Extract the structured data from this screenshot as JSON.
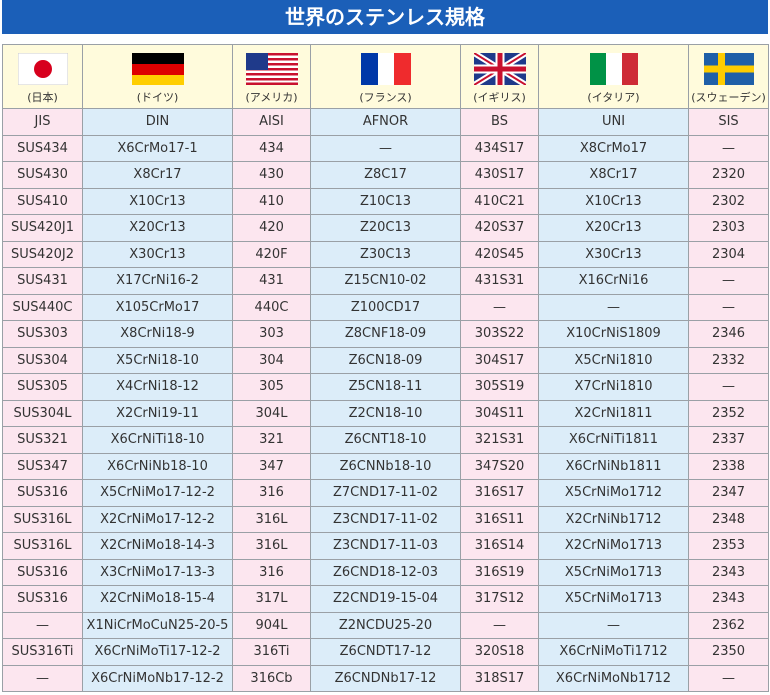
{
  "header": {
    "title": "世界のステンレス規格"
  },
  "table": {
    "countries": [
      "(日本)",
      "(ドイツ)",
      "(アメリカ)",
      "(フランス)",
      "(イギリス)",
      "(イタリア)",
      "(スウェーデン)"
    ],
    "columns": [
      "JIS",
      "DIN",
      "AISI",
      "AFNOR",
      "BS",
      "UNI",
      "SIS"
    ],
    "rows": [
      [
        "SUS434",
        "X6CrMo17-1",
        "434",
        "—",
        "434S17",
        "X8CrMo17",
        "—"
      ],
      [
        "SUS430",
        "X8Cr17",
        "430",
        "Z8C17",
        "430S17",
        "X8Cr17",
        "2320"
      ],
      [
        "SUS410",
        "X10Cr13",
        "410",
        "Z10C13",
        "410C21",
        "X10Cr13",
        "2302"
      ],
      [
        "SUS420J1",
        "X20Cr13",
        "420",
        "Z20C13",
        "420S37",
        "X20Cr13",
        "2303"
      ],
      [
        "SUS420J2",
        "X30Cr13",
        "420F",
        "Z30C13",
        "420S45",
        "X30Cr13",
        "2304"
      ],
      [
        "SUS431",
        "X17CrNi16-2",
        "431",
        "Z15CN10-02",
        "431S31",
        "X16CrNi16",
        "—"
      ],
      [
        "SUS440C",
        "X105CrMo17",
        "440C",
        "Z100CD17",
        "—",
        "—",
        "—"
      ],
      [
        "SUS303",
        "X8CrNi18-9",
        "303",
        "Z8CNF18-09",
        "303S22",
        "X10CrNiS1809",
        "2346"
      ],
      [
        "SUS304",
        "X5CrNi18-10",
        "304",
        "Z6CN18-09",
        "304S17",
        "X5CrNi1810",
        "2332"
      ],
      [
        "SUS305",
        "X4CrNi18-12",
        "305",
        "Z5CN18-11",
        "305S19",
        "X7CrNi1810",
        "—"
      ],
      [
        "SUS304L",
        "X2CrNi19-11",
        "304L",
        "Z2CN18-10",
        "304S11",
        "X2CrNi1811",
        "2352"
      ],
      [
        "SUS321",
        "X6CrNiTi18-10",
        "321",
        "Z6CNT18-10",
        "321S31",
        "X6CrNiTi1811",
        "2337"
      ],
      [
        "SUS347",
        "X6CrNiNb18-10",
        "347",
        "Z6CNNb18-10",
        "347S20",
        "X6CrNiNb1811",
        "2338"
      ],
      [
        "SUS316",
        "X5CrNiMo17-12-2",
        "316",
        "Z7CND17-11-02",
        "316S17",
        "X5CrNiMo1712",
        "2347"
      ],
      [
        "SUS316L",
        "X2CrNiMo17-12-2",
        "316L",
        "Z3CND17-11-02",
        "316S11",
        "X2CrNiNb1712",
        "2348"
      ],
      [
        "SUS316L",
        "X2CrNiMo18-14-3",
        "316L",
        "Z3CND17-11-03",
        "316S14",
        "X2CrNiMo1713",
        "2353"
      ],
      [
        "SUS316",
        "X3CrNiMo17-13-3",
        "316",
        "Z6CND18-12-03",
        "316S19",
        "X5CrNiMo1713",
        "2343"
      ],
      [
        "SUS316",
        "X2CrNiMo18-15-4",
        "317L",
        "Z2CND19-15-04",
        "317S12",
        "X5CrNiMo1713",
        "2343"
      ],
      [
        "—",
        "X1NiCrMoCuN25-20-5",
        "904L",
        "Z2NCDU25-20",
        "—",
        "—",
        "2362"
      ],
      [
        "SUS316Ti",
        "X6CrNiMoTi17-12-2",
        "316Ti",
        "Z6CNDT17-12",
        "320S18",
        "X6CrNiMoTi1712",
        "2350"
      ],
      [
        "—",
        "X6CrNiMoNb17-12-2",
        "316Cb",
        "Z6CNDNb17-12",
        "318S17",
        "X6CrNiMoNb1712",
        "—"
      ]
    ]
  }
}
